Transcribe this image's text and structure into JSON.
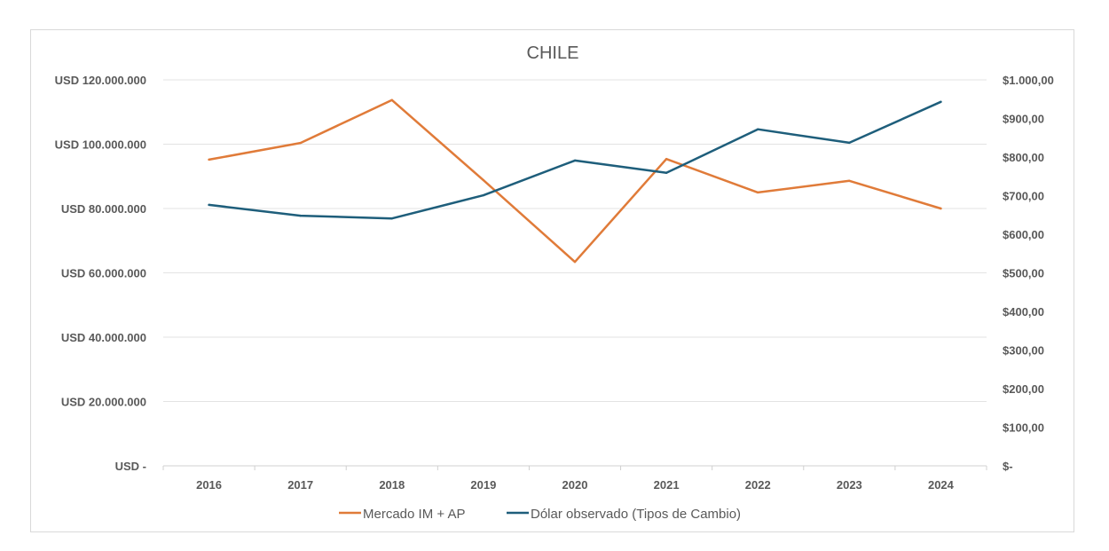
{
  "chart_data": {
    "type": "line",
    "title": "CHILE",
    "categories": [
      "2016",
      "2017",
      "2018",
      "2019",
      "2020",
      "2021",
      "2022",
      "2023",
      "2024"
    ],
    "series": [
      {
        "name": "Mercado IM + AP",
        "axis": "left",
        "color": "#E07B39",
        "values": [
          95200000,
          100400000,
          113700000,
          88800000,
          63400000,
          95400000,
          85000000,
          88600000,
          80000000
        ]
      },
      {
        "name": "Dólar observado (Tipos de Cambio)",
        "axis": "right",
        "color": "#1E5E7B",
        "values": [
          676,
          648,
          641,
          701,
          791,
          759,
          872,
          837,
          943
        ]
      }
    ],
    "left_axis": {
      "ylim": [
        0,
        120000000
      ],
      "ticks": [
        0,
        20000000,
        40000000,
        60000000,
        80000000,
        100000000,
        120000000
      ],
      "tick_labels": [
        "USD -",
        "USD 20.000.000",
        "USD 40.000.000",
        "USD 60.000.000",
        "USD 80.000.000",
        "USD 100.000.000",
        "USD 120.000.000"
      ]
    },
    "right_axis": {
      "ylim": [
        0,
        1000
      ],
      "ticks": [
        0,
        100,
        200,
        300,
        400,
        500,
        600,
        700,
        800,
        900,
        1000
      ],
      "tick_labels": [
        "$-",
        "$100,00",
        "$200,00",
        "$300,00",
        "$400,00",
        "$500,00",
        "$600,00",
        "$700,00",
        "$800,00",
        "$900,00",
        "$1.000,00"
      ]
    },
    "xlabel": "",
    "ylabel": "",
    "grid": true,
    "legend": "bottom"
  }
}
